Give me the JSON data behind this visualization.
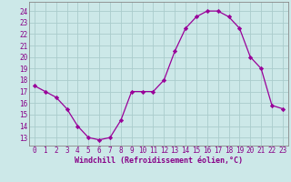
{
  "x": [
    0,
    1,
    2,
    3,
    4,
    5,
    6,
    7,
    8,
    9,
    10,
    11,
    12,
    13,
    14,
    15,
    16,
    17,
    18,
    19,
    20,
    21,
    22,
    23
  ],
  "y": [
    17.5,
    17.0,
    16.5,
    15.5,
    14.0,
    13.0,
    12.8,
    13.0,
    14.5,
    17.0,
    17.0,
    17.0,
    18.0,
    20.5,
    22.5,
    23.5,
    24.0,
    24.0,
    23.5,
    22.5,
    20.0,
    19.0,
    15.8,
    15.5
  ],
  "line_color": "#990099",
  "marker": "D",
  "marker_size": 2.2,
  "bg_color": "#cce8e8",
  "grid_color": "#aacccc",
  "xlabel": "Windchill (Refroidissement éolien,°C)",
  "xlabel_fontsize": 6.0,
  "xtick_labels": [
    "0",
    "1",
    "2",
    "3",
    "4",
    "5",
    "6",
    "7",
    "8",
    "9",
    "10",
    "11",
    "12",
    "13",
    "14",
    "15",
    "16",
    "17",
    "18",
    "19",
    "20",
    "21",
    "22",
    "23"
  ],
  "ytick_labels": [
    "13",
    "14",
    "15",
    "16",
    "17",
    "18",
    "19",
    "20",
    "21",
    "22",
    "23",
    "24"
  ],
  "ylim": [
    12.3,
    24.8
  ],
  "xlim": [
    -0.5,
    23.5
  ],
  "yticks": [
    13,
    14,
    15,
    16,
    17,
    18,
    19,
    20,
    21,
    22,
    23,
    24
  ],
  "tick_fontsize": 5.5,
  "tick_color": "#880088",
  "spine_color": "#888888"
}
